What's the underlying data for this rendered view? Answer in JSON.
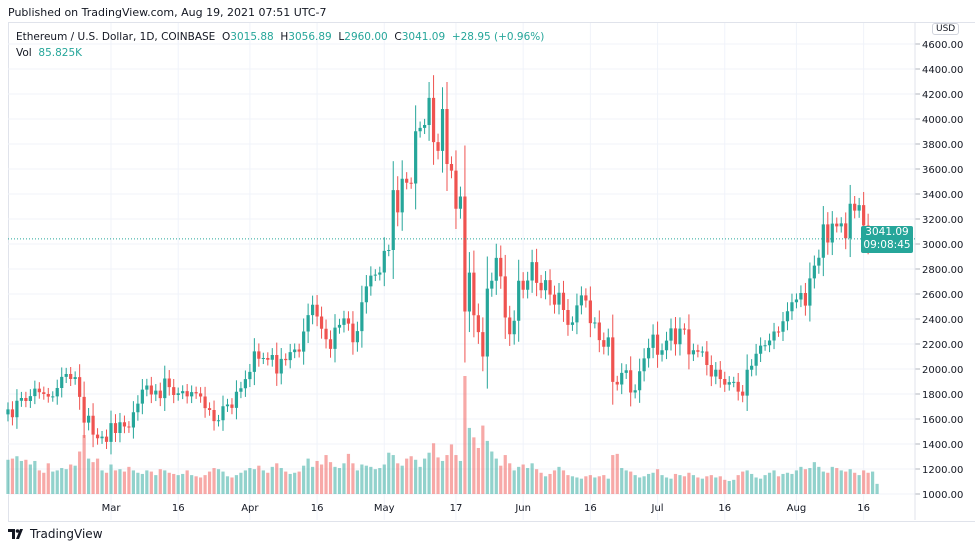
{
  "header": {
    "published": "Published on TradingView.com, Aug 19, 2021 07:51 UTC-7"
  },
  "legend": {
    "symbol": "Ethereum / U.S. Dollar, 1D, COINBASE",
    "o_label": "O",
    "o": "3015.88",
    "h_label": "H",
    "h": "3056.89",
    "l_label": "L",
    "l": "2960.00",
    "c_label": "C",
    "c": "3041.09",
    "change": "+28.95 (+0.96%)",
    "vol_label": "Vol",
    "vol": "85.825K"
  },
  "price_label": {
    "price": "3041.09",
    "countdown": "09:08:45"
  },
  "currency": "USD",
  "logo": {
    "text": "TradingView",
    "icon": "tradingview-logo-icon"
  },
  "colors": {
    "up": "#26a69a",
    "down": "#ef5350",
    "grid": "#f0f3fa"
  },
  "chart_data": {
    "type": "candlestick",
    "start_date": "2021-02-06",
    "end_date": "2021-08-19",
    "y_scale": "linear",
    "ylim": [
      1000,
      4600
    ],
    "y_ticks": [
      1000,
      1200,
      1400,
      1600,
      1800,
      2000,
      2200,
      2400,
      2600,
      2800,
      3000,
      3200,
      3400,
      3600,
      3800,
      4000,
      4200,
      4400,
      4600
    ],
    "y_tick_labels": [
      "1000.00",
      "1200.00",
      "1400.00",
      "1600.00",
      "1800.00",
      "2000.00",
      "2200.00",
      "2400.00",
      "2600.00",
      "2800.00",
      "3000.00",
      "3200.00",
      "3400.00",
      "3600.00",
      "3800.00",
      "4000.00",
      "4200.00",
      "4400.00",
      "4600.00"
    ],
    "x_ticks": [
      {
        "date": "2021-03-01",
        "label": "Mar"
      },
      {
        "date": "2021-03-16",
        "label": "16"
      },
      {
        "date": "2021-04-01",
        "label": "Apr"
      },
      {
        "date": "2021-04-16",
        "label": "16"
      },
      {
        "date": "2021-05-01",
        "label": "May"
      },
      {
        "date": "2021-05-17",
        "label": "17"
      },
      {
        "date": "2021-06-01",
        "label": "Jun"
      },
      {
        "date": "2021-06-16",
        "label": "16"
      },
      {
        "date": "2021-07-01",
        "label": "Jul"
      },
      {
        "date": "2021-07-16",
        "label": "16"
      },
      {
        "date": "2021-08-01",
        "label": "Aug"
      },
      {
        "date": "2021-08-16",
        "label": "16"
      }
    ],
    "grid": true,
    "last_price": 3041.09,
    "close": [
      1677,
      1614,
      1746,
      1768,
      1744,
      1783,
      1843,
      1814,
      1800,
      1779,
      1781,
      1848,
      1937,
      1960,
      1920,
      1935,
      1777,
      1571,
      1626,
      1475,
      1446,
      1459,
      1417,
      1567,
      1488,
      1574,
      1540,
      1532,
      1654,
      1723,
      1835,
      1868,
      1796,
      1827,
      1767,
      1924,
      1855,
      1792,
      1806,
      1823,
      1781,
      1815,
      1805,
      1780,
      1687,
      1672,
      1583,
      1590,
      1702,
      1716,
      1689,
      1818,
      1846,
      1919,
      1977,
      2141,
      2082,
      2088,
      2074,
      2112,
      1964,
      2081,
      2071,
      2135,
      2156,
      2139,
      2300,
      2431,
      2514,
      2420,
      2322,
      2238,
      2161,
      2331,
      2353,
      2405,
      2363,
      2214,
      2303,
      2534,
      2661,
      2747,
      2755,
      2772,
      2945,
      2952,
      3431,
      3253,
      3522,
      3490,
      3484,
      3902,
      3929,
      3952,
      4169,
      3815,
      3745,
      4080,
      3640,
      3587,
      3282,
      3380,
      2460,
      2771,
      2430,
      2295,
      2100,
      2643,
      2706,
      2889,
      2741,
      2412,
      2278,
      2386,
      2706,
      2634,
      2708,
      2855,
      2689,
      2630,
      2711,
      2595,
      2515,
      2610,
      2472,
      2353,
      2373,
      2509,
      2589,
      2548,
      2367,
      2372,
      2231,
      2178,
      2253,
      1897,
      1876,
      1969,
      1990,
      1812,
      1830,
      1982,
      2085,
      2169,
      2275,
      2114,
      2150,
      2227,
      2325,
      2198,
      2323,
      2317,
      2117,
      2150,
      2138,
      2140,
      2032,
      1940,
      1994,
      1920,
      1875,
      1895,
      1897,
      1819,
      1787,
      1994,
      2026,
      2122,
      2187,
      2190,
      2228,
      2300,
      2298,
      2382,
      2462,
      2534,
      2556,
      2608,
      2507,
      2725,
      2827,
      2890,
      3157,
      3012,
      3163,
      3141,
      3165,
      3046,
      3322,
      3267,
      3311,
      3148,
      3012,
      3012,
      3041.09
    ],
    "volume_k": [
      290,
      300,
      320,
      280,
      290,
      250,
      280,
      200,
      180,
      260,
      190,
      200,
      220,
      210,
      250,
      240,
      360,
      500,
      300,
      270,
      300,
      200,
      180,
      250,
      200,
      210,
      190,
      230,
      200,
      180,
      170,
      200,
      190,
      160,
      210,
      200,
      180,
      170,
      160,
      170,
      200,
      160,
      150,
      140,
      160,
      190,
      220,
      210,
      190,
      150,
      140,
      160,
      180,
      200,
      220,
      210,
      240,
      200,
      180,
      230,
      260,
      220,
      190,
      170,
      180,
      190,
      240,
      300,
      230,
      280,
      250,
      330,
      270,
      230,
      220,
      260,
      340,
      260,
      200,
      250,
      240,
      230,
      210,
      220,
      250,
      350,
      330,
      260,
      240,
      300,
      320,
      290,
      230,
      300,
      350,
      430,
      310,
      280,
      330,
      420,
      330,
      280,
      1000,
      560,
      480,
      390,
      580,
      450,
      360,
      300,
      240,
      330,
      260,
      200,
      230,
      250,
      220,
      260,
      210,
      180,
      150,
      170,
      200,
      230,
      200,
      160,
      150,
      140,
      130,
      150,
      160,
      140,
      150,
      160,
      130,
      330,
      340,
      220,
      200,
      190,
      160,
      140,
      150,
      170,
      180,
      210,
      160,
      140,
      130,
      170,
      160,
      150,
      180,
      160,
      140,
      130,
      150,
      160,
      140,
      150,
      120,
      110,
      120,
      160,
      190,
      200,
      170,
      140,
      130,
      160,
      180,
      200,
      150,
      170,
      180,
      170,
      200,
      230,
      210,
      220,
      270,
      230,
      190,
      180,
      230,
      220,
      200,
      190,
      210,
      180,
      160,
      200,
      180,
      190,
      86
    ]
  }
}
